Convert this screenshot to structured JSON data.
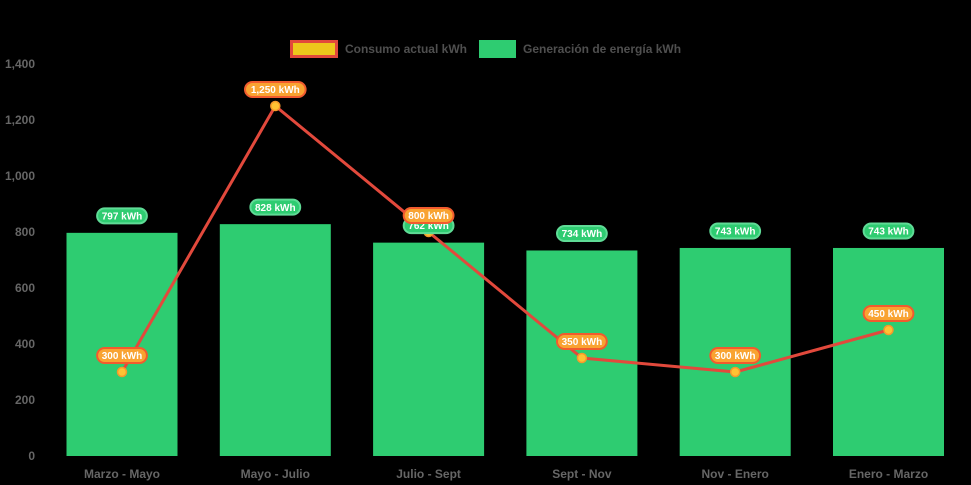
{
  "legend": {
    "items": [
      {
        "id": "consumo",
        "label": "Consumo actual kWh",
        "swatch_fill": "#EDC71C",
        "swatch_border": "#E2493C"
      },
      {
        "id": "generacion",
        "label": "Generación de energía kWh",
        "swatch_fill": "#2ECC71",
        "swatch_border": ""
      }
    ],
    "text_color": "#4F4F4F",
    "position": "top-center"
  },
  "chart_data": {
    "type": "combo-bar-line",
    "categories": [
      "Marzo - Mayo",
      "Mayo - Julio",
      "Julio - Sept",
      "Sept - Nov",
      "Nov - Enero",
      "Enero - Marzo"
    ],
    "series": [
      {
        "name": "Generación de energía kWh",
        "type": "bar",
        "color": "#2ECC71",
        "values": [
          797,
          828,
          762,
          734,
          743,
          743
        ],
        "point_labels": [
          "797 kWh",
          "828 kWh",
          "762 kWh",
          "734 kWh",
          "743 kWh",
          "743 kWh"
        ],
        "label_fill": "#2ECC71",
        "label_border": "#5FDB96",
        "label_text_color": "#FFFFFF"
      },
      {
        "name": "Consumo actual kWh",
        "type": "line",
        "color": "#E2493C",
        "values": [
          300,
          1250,
          800,
          350,
          300,
          450
        ],
        "point_labels": [
          "300 kWh",
          "1,250 kWh",
          "800 kWh",
          "350 kWh",
          "300 kWh",
          "450 kWh"
        ],
        "point_fill": "#FFC233",
        "point_border": "#F5992B",
        "label_fill": "#F9A331",
        "label_border": "#F15B2E",
        "label_text_color": "#FFFFFF"
      }
    ],
    "ylim": [
      0,
      1400
    ],
    "ytick_step": 200,
    "ytick_labels": [
      "0",
      "200",
      "400",
      "600",
      "800",
      "1,000",
      "1,200",
      "1,400"
    ],
    "axis_text_color": "#666666",
    "background": "#000000",
    "grid": false
  }
}
